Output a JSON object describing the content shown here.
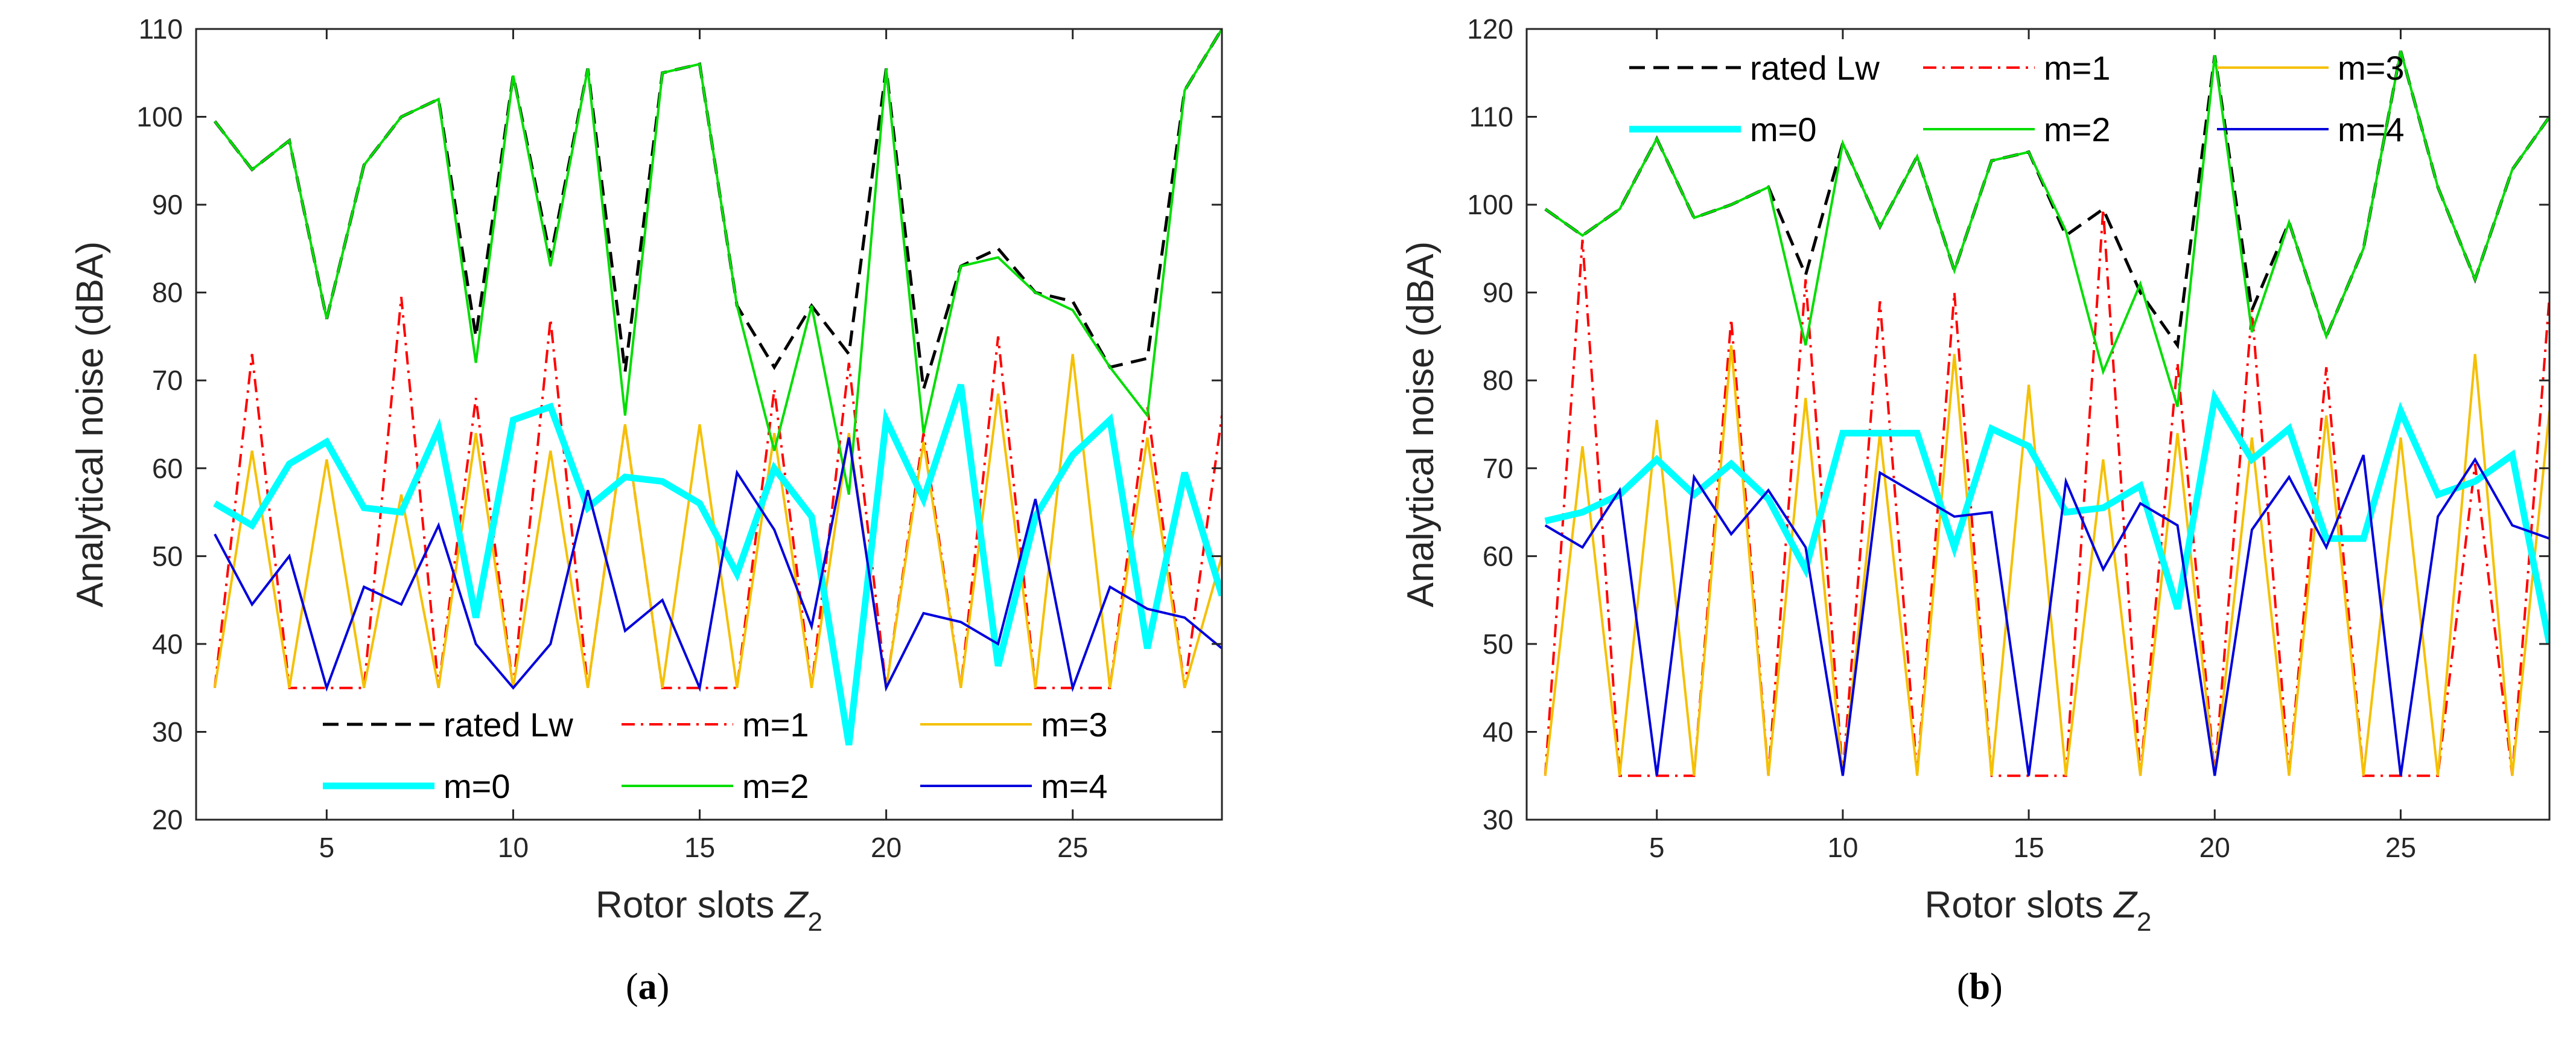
{
  "panels": [
    {
      "label_open": "(",
      "label_letter": "a",
      "label_close": ")"
    },
    {
      "label_open": "(",
      "label_letter": "b",
      "label_close": ")"
    }
  ],
  "chart_data": [
    {
      "type": "line",
      "title": "",
      "xlabel_main": "Rotor slots ",
      "xlabel_var": "Z",
      "xlabel_sub": "2",
      "ylabel": "Analytical noise (dBA)",
      "xlim": [
        1.5,
        29
      ],
      "ylim": [
        20,
        110
      ],
      "xticks": [
        5,
        10,
        15,
        20,
        25
      ],
      "yticks": [
        20,
        30,
        40,
        50,
        60,
        70,
        80,
        90,
        100,
        110
      ],
      "grid": false,
      "legend_position": "bottom",
      "x": [
        2,
        3,
        4,
        5,
        6,
        7,
        8,
        9,
        10,
        11,
        12,
        13,
        14,
        15,
        16,
        17,
        18,
        19,
        20,
        21,
        22,
        23,
        24,
        25,
        26,
        27,
        28,
        29
      ],
      "series": [
        {
          "name": "rated Lw",
          "color": "#000000",
          "style": "dashed",
          "values": [
            99.5,
            94,
            97.3,
            77,
            94.5,
            100,
            102,
            75,
            104.7,
            84,
            105.5,
            71,
            105,
            106,
            78.5,
            71.5,
            78.5,
            73,
            105.5,
            69,
            83,
            85,
            80,
            79,
            71.5,
            72.5,
            103,
            110
          ]
        },
        {
          "name": "m=1",
          "color": "#ff0000",
          "style": "dashdot",
          "values": [
            35,
            73,
            35,
            35,
            35,
            79.5,
            35,
            68,
            35,
            77,
            35,
            65,
            35,
            35,
            35,
            69,
            35,
            72,
            35,
            64,
            35,
            75,
            35,
            35,
            35,
            67,
            35,
            66
          ]
        },
        {
          "name": "m=3",
          "color": "#f5c000",
          "style": "solid",
          "values": [
            35,
            62,
            35,
            61,
            35,
            57,
            35,
            64,
            35,
            62,
            35,
            65,
            35,
            65,
            35,
            64,
            35,
            64,
            35,
            63,
            35,
            68.5,
            35,
            73,
            35,
            63.5,
            35,
            50
          ]
        },
        {
          "name": "m=0",
          "color": "#00ffff",
          "style": "thick",
          "values": [
            56,
            53.5,
            60.5,
            63,
            55.5,
            55,
            64.5,
            43,
            65.5,
            67,
            55.5,
            59,
            58.5,
            56,
            48,
            60,
            54.5,
            28.5,
            65.5,
            56.5,
            69.5,
            37.5,
            54.5,
            61.5,
            65.5,
            39.5,
            59.5,
            45.5
          ]
        },
        {
          "name": "m=2",
          "color": "#00dd00",
          "style": "solid",
          "values": [
            99.5,
            94,
            97.3,
            77,
            94.5,
            100,
            102,
            72,
            104.7,
            83,
            105.5,
            66,
            105,
            106,
            78.5,
            62,
            78.5,
            57,
            105.5,
            64,
            83,
            84,
            80,
            78,
            71.5,
            66,
            103,
            110
          ]
        },
        {
          "name": "m=4",
          "color": "#0000dd",
          "style": "solid",
          "values": [
            52.5,
            44.5,
            50,
            35,
            46.5,
            44.5,
            53.5,
            40,
            35,
            40,
            57.5,
            41.5,
            45,
            35,
            59.5,
            53,
            42,
            63.5,
            35,
            43.5,
            42.5,
            40,
            56.5,
            35,
            46.5,
            44,
            43,
            39.5
          ]
        }
      ]
    },
    {
      "type": "line",
      "title": "",
      "xlabel_main": "Rotor slots ",
      "xlabel_var": "Z",
      "xlabel_sub": "2",
      "ylabel": "Analytical noise (dBA)",
      "xlim": [
        1.5,
        29
      ],
      "ylim": [
        30,
        120
      ],
      "xticks": [
        5,
        10,
        15,
        20,
        25
      ],
      "yticks": [
        30,
        40,
        50,
        60,
        70,
        80,
        90,
        100,
        110,
        120
      ],
      "grid": false,
      "legend_position": "top",
      "x": [
        2,
        3,
        4,
        5,
        6,
        7,
        8,
        9,
        10,
        11,
        12,
        13,
        14,
        15,
        16,
        17,
        18,
        19,
        20,
        21,
        22,
        23,
        24,
        25,
        26,
        27,
        28,
        29
      ],
      "series": [
        {
          "name": "rated Lw",
          "color": "#000000",
          "style": "dashed",
          "values": [
            99.5,
            96.5,
            99.5,
            107.5,
            98.5,
            100,
            102,
            92,
            107,
            97.5,
            105.5,
            92.5,
            105,
            106,
            96.5,
            99.5,
            90,
            84,
            117,
            88,
            98,
            85,
            95,
            117.5,
            102,
            91.5,
            104,
            110
          ]
        },
        {
          "name": "m=1",
          "color": "#ff0000",
          "style": "dashdot",
          "values": [
            35,
            96,
            35,
            35,
            35,
            87,
            35,
            91.5,
            35,
            89,
            35,
            90,
            35,
            35,
            35,
            99.5,
            35,
            82,
            35,
            88,
            35,
            81.5,
            35,
            35,
            35,
            70.5,
            35,
            89.5
          ]
        },
        {
          "name": "m=3",
          "color": "#f5c000",
          "style": "solid",
          "values": [
            35,
            72.5,
            35,
            75.5,
            35,
            84,
            35,
            78,
            35,
            74,
            35,
            83,
            35,
            79.5,
            35,
            71,
            35,
            74,
            35,
            73.5,
            35,
            76,
            35,
            73.5,
            35,
            83,
            35,
            76.5
          ]
        },
        {
          "name": "m=0",
          "color": "#00ffff",
          "style": "thick",
          "values": [
            64,
            65,
            67,
            71,
            67,
            70.5,
            66.5,
            58.5,
            74,
            74,
            74,
            61,
            74.5,
            72.5,
            65,
            65.5,
            68,
            54,
            78,
            71,
            74.5,
            62,
            62,
            76.5,
            67,
            68.5,
            71.5,
            50
          ]
        },
        {
          "name": "m=2",
          "color": "#00dd00",
          "style": "solid",
          "values": [
            99.5,
            96.5,
            99.5,
            107.5,
            98.5,
            100,
            102,
            84,
            107,
            97.5,
            105.5,
            92.5,
            105,
            106,
            97,
            81,
            91,
            77,
            117,
            85.5,
            98,
            85,
            95,
            117.5,
            102,
            91.5,
            104,
            110
          ]
        },
        {
          "name": "m=4",
          "color": "#0000dd",
          "style": "solid",
          "values": [
            63.5,
            61,
            67.5,
            35,
            69,
            62.5,
            67.5,
            61,
            35,
            69.5,
            67,
            64.5,
            65,
            35,
            68.5,
            58.5,
            66,
            63.5,
            35,
            63,
            69,
            61,
            71.5,
            35,
            64.5,
            71,
            63.5,
            62
          ]
        }
      ]
    }
  ]
}
